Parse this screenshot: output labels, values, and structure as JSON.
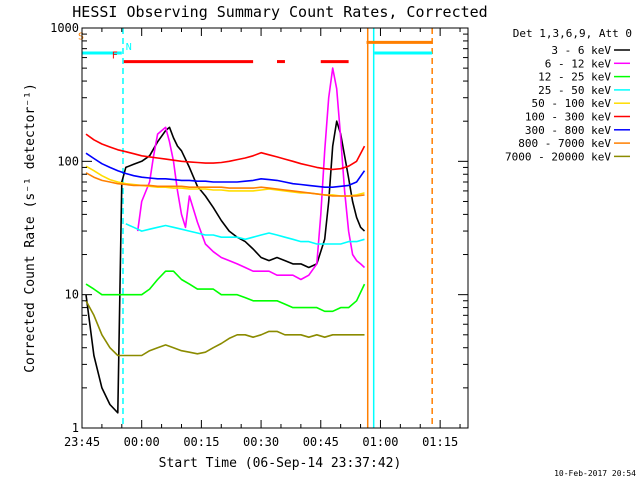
{
  "chart_data": {
    "type": "line",
    "title": "HESSI Observing Summary Count Rates, Corrected",
    "xlabel": "Start Time (06-Sep-14 23:37:42)",
    "ylabel": "Corrected Count Rate (s⁻¹ detector⁻¹)",
    "yscale": "log",
    "ylim": [
      1,
      1000
    ],
    "xlim_minutes": [
      -15,
      82
    ],
    "x_unit": "minutes after 00:00 (07-Sep-14)",
    "x_ticks": [
      {
        "label": "23:45",
        "minutes": -15
      },
      {
        "label": "00:00",
        "minutes": 0
      },
      {
        "label": "00:15",
        "minutes": 15
      },
      {
        "label": "00:30",
        "minutes": 30
      },
      {
        "label": "00:45",
        "minutes": 45
      },
      {
        "label": "01:00",
        "minutes": 60
      },
      {
        "label": "01:15",
        "minutes": 75
      }
    ],
    "y_ticks": [
      {
        "label": "1",
        "value": 1
      },
      {
        "label": "10",
        "value": 10
      },
      {
        "label": "100",
        "value": 100
      },
      {
        "label": "1000",
        "value": 1000
      }
    ],
    "legend_title": "Det 1,3,6,9, Att 0",
    "legend_placement": "outside-right",
    "grid": false,
    "flags": [
      {
        "label": "S",
        "color": "#ff7f00",
        "y_value": 780,
        "segments": [
          [
            -22,
            -17
          ],
          [
            56.5,
            73
          ]
        ]
      },
      {
        "label": "N",
        "color": "#00ffff",
        "y_value": 650,
        "segments": [
          [
            -22,
            -5
          ],
          [
            58.5,
            73
          ]
        ]
      },
      {
        "label": "F",
        "color": "#ff0000",
        "y_value": 560,
        "segments": [
          [
            -4.5,
            28
          ],
          [
            34,
            36
          ],
          [
            45,
            52
          ]
        ]
      }
    ],
    "markers": [
      {
        "color": "#ff7f00",
        "minutes": -16.5,
        "style": "dashed"
      },
      {
        "color": "#00ffff",
        "minutes": -4.7,
        "style": "dashed"
      },
      {
        "color": "#ff7f00",
        "minutes": 56.8,
        "style": "solid"
      },
      {
        "color": "#00ffff",
        "minutes": 58.3,
        "style": "solid"
      },
      {
        "color": "#ff7f00",
        "minutes": 73,
        "style": "dashed"
      }
    ],
    "series": [
      {
        "name": "3 - 6 keV",
        "color": "#000000",
        "x": [
          -14,
          -12,
          -10,
          -8,
          -6,
          -5,
          -4,
          -2,
          0,
          2,
          4,
          6,
          7,
          8,
          9,
          10,
          12,
          14,
          16,
          18,
          20,
          22,
          24,
          26,
          28,
          30,
          32,
          34,
          36,
          38,
          40,
          42,
          44,
          46,
          47,
          48,
          49,
          50,
          51,
          52,
          53,
          54,
          55,
          56
        ],
        "y": [
          10,
          3.5,
          2,
          1.5,
          1.3,
          70,
          90,
          95,
          100,
          110,
          140,
          170,
          180,
          150,
          130,
          120,
          90,
          65,
          55,
          45,
          36,
          30,
          27,
          25,
          22,
          19,
          18,
          19,
          18,
          17,
          17,
          16,
          17,
          26,
          50,
          130,
          200,
          160,
          110,
          75,
          50,
          38,
          32,
          30
        ]
      },
      {
        "name": "6 - 12 keV",
        "color": "#ff00ff",
        "x": [
          -1,
          0,
          2,
          3,
          4,
          6,
          7,
          8,
          9,
          10,
          11,
          12,
          14,
          16,
          18,
          20,
          22,
          24,
          26,
          28,
          30,
          32,
          34,
          36,
          38,
          40,
          42,
          44,
          45,
          46,
          47,
          48,
          49,
          50,
          51,
          52,
          53,
          54,
          55,
          56
        ],
        "y": [
          30,
          50,
          70,
          110,
          160,
          180,
          140,
          100,
          60,
          40,
          32,
          55,
          35,
          24,
          21,
          19,
          18,
          17,
          16,
          15,
          15,
          15,
          14,
          14,
          14,
          13,
          14,
          17,
          40,
          120,
          300,
          500,
          350,
          150,
          60,
          30,
          20,
          18,
          17,
          16
        ]
      },
      {
        "name": "12 - 25 keV",
        "color": "#00ff00",
        "x": [
          -14,
          -12,
          -10,
          -8,
          -6,
          -4,
          -2,
          0,
          2,
          4,
          6,
          8,
          10,
          12,
          14,
          16,
          18,
          20,
          22,
          24,
          26,
          28,
          30,
          32,
          34,
          36,
          38,
          40,
          42,
          44,
          46,
          48,
          50,
          52,
          54,
          56
        ],
        "y": [
          12,
          11,
          10,
          10,
          10,
          10,
          10,
          10,
          11,
          13,
          15,
          15,
          13,
          12,
          11,
          11,
          11,
          10,
          10,
          10,
          9.5,
          9,
          9,
          9,
          9,
          8.5,
          8,
          8,
          8,
          8,
          7.5,
          7.5,
          8,
          8,
          9,
          12
        ]
      },
      {
        "name": "25 - 50 keV",
        "color": "#00ffff",
        "x": [
          -4,
          -2,
          0,
          2,
          4,
          6,
          8,
          10,
          12,
          14,
          16,
          18,
          20,
          22,
          24,
          26,
          28,
          30,
          32,
          34,
          36,
          38,
          40,
          42,
          44,
          46,
          48,
          50,
          52,
          54,
          56
        ],
        "y": [
          34,
          32,
          30,
          31,
          32,
          33,
          32,
          31,
          30,
          29,
          28,
          28,
          27,
          27,
          27,
          26,
          27,
          28,
          29,
          28,
          27,
          26,
          25,
          25,
          24,
          24,
          24,
          24,
          25,
          25,
          26
        ]
      },
      {
        "name": "50 - 100 keV",
        "color": "#ffdd00",
        "x": [
          -14,
          -12,
          -10,
          -8,
          -6,
          -4,
          -2,
          0,
          2,
          4,
          6,
          8,
          10,
          12,
          14,
          16,
          18,
          20,
          22,
          24,
          26,
          28,
          30,
          32,
          34,
          36,
          38,
          40,
          42,
          44,
          46,
          48,
          50,
          52,
          54,
          56
        ],
        "y": [
          92,
          85,
          78,
          73,
          70,
          68,
          67,
          66,
          65,
          64,
          64,
          63,
          63,
          62,
          62,
          62,
          61,
          61,
          60,
          60,
          60,
          60,
          61,
          62,
          61,
          60,
          59,
          58,
          58,
          57,
          56,
          56,
          55,
          55,
          56,
          58
        ]
      },
      {
        "name": "100 - 300 keV",
        "color": "#ff0000",
        "x": [
          -14,
          -12,
          -10,
          -8,
          -6,
          -4,
          -2,
          0,
          2,
          4,
          6,
          8,
          10,
          12,
          14,
          16,
          18,
          20,
          22,
          24,
          26,
          28,
          30,
          32,
          34,
          36,
          38,
          40,
          42,
          44,
          46,
          48,
          50,
          52,
          54,
          56
        ],
        "y": [
          160,
          145,
          135,
          128,
          122,
          118,
          114,
          110,
          108,
          106,
          104,
          102,
          100,
          99,
          98,
          97,
          97,
          98,
          100,
          103,
          106,
          110,
          116,
          112,
          108,
          104,
          100,
          96,
          93,
          90,
          88,
          87,
          88,
          92,
          100,
          130
        ]
      },
      {
        "name": "300 - 800 keV",
        "color": "#0000ff",
        "x": [
          -14,
          -12,
          -10,
          -8,
          -6,
          -4,
          -2,
          0,
          2,
          4,
          6,
          8,
          10,
          12,
          14,
          16,
          18,
          20,
          22,
          24,
          26,
          28,
          30,
          32,
          34,
          36,
          38,
          40,
          42,
          44,
          46,
          48,
          50,
          52,
          54,
          56
        ],
        "y": [
          115,
          105,
          96,
          90,
          85,
          81,
          78,
          76,
          75,
          74,
          74,
          73,
          72,
          72,
          71,
          71,
          70,
          70,
          70,
          70,
          71,
          72,
          74,
          73,
          72,
          70,
          68,
          67,
          66,
          65,
          64,
          64,
          65,
          66,
          70,
          85
        ]
      },
      {
        "name": "800 - 7000 keV",
        "color": "#ff7f00",
        "x": [
          -14,
          -12,
          -10,
          -8,
          -6,
          -4,
          -2,
          0,
          2,
          4,
          6,
          8,
          10,
          12,
          14,
          16,
          18,
          20,
          22,
          24,
          26,
          28,
          30,
          32,
          34,
          36,
          38,
          40,
          42,
          44,
          46,
          48,
          50,
          52,
          54,
          56
        ],
        "y": [
          82,
          76,
          72,
          70,
          68,
          67,
          66,
          66,
          66,
          65,
          65,
          65,
          65,
          64,
          64,
          64,
          64,
          64,
          63,
          63,
          63,
          63,
          64,
          63,
          62,
          61,
          60,
          59,
          58,
          57,
          56,
          55,
          55,
          55,
          55,
          56
        ]
      },
      {
        "name": "7000 - 20000 keV",
        "color": "#8b8b00",
        "x": [
          -14,
          -12,
          -10,
          -8,
          -6,
          -4,
          -2,
          0,
          2,
          4,
          6,
          8,
          10,
          12,
          14,
          16,
          18,
          20,
          22,
          24,
          26,
          28,
          30,
          32,
          34,
          36,
          38,
          40,
          42,
          44,
          46,
          48,
          50,
          52,
          54,
          56
        ],
        "y": [
          9,
          7,
          5,
          4,
          3.5,
          3.5,
          3.5,
          3.5,
          3.8,
          4,
          4.2,
          4,
          3.8,
          3.7,
          3.6,
          3.7,
          4,
          4.3,
          4.7,
          5,
          5,
          4.8,
          5,
          5.3,
          5.3,
          5,
          5,
          5,
          4.8,
          5,
          4.8,
          5,
          5,
          5,
          5,
          5
        ]
      }
    ],
    "timestamp": "10-Feb-2017 20:54"
  }
}
